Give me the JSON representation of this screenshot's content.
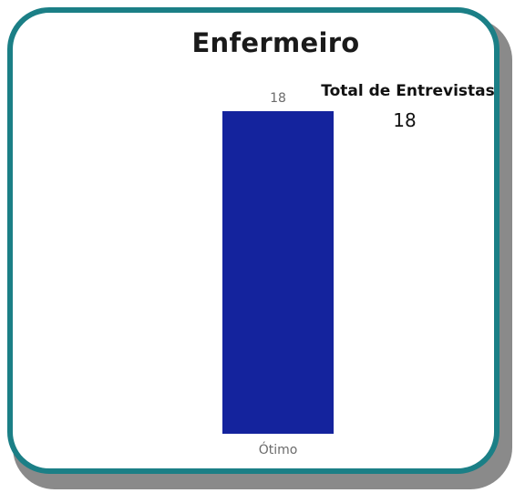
{
  "card": {
    "title": "Enfermeiro"
  },
  "kpi": {
    "label": "Total de Entrevistas",
    "value": "18"
  },
  "chart_data": {
    "type": "bar",
    "categories": [
      "Ótimo"
    ],
    "values": [
      18
    ],
    "ylim": [
      0,
      18
    ],
    "data_labels": true,
    "grid": false,
    "title": "",
    "xlabel": "",
    "ylabel": "",
    "bar_color": "#14239d"
  },
  "colors": {
    "border": "#1b7f86",
    "bar": "#14239d"
  }
}
